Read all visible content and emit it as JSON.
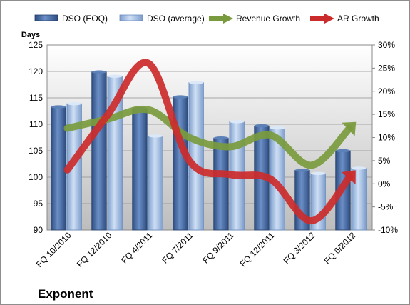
{
  "chart_data": {
    "type": "bar",
    "title": "Exponent",
    "ylabel": "Days",
    "y2label": "",
    "ylim": [
      90,
      125
    ],
    "y2lim": [
      -10,
      30
    ],
    "yticks": [
      "125",
      "120",
      "115",
      "110",
      "105",
      "100",
      "95",
      "90"
    ],
    "y2ticks": [
      "30%",
      "25%",
      "20%",
      "15%",
      "10%",
      "5%",
      "0%",
      "-5%",
      "-10%"
    ],
    "categories": [
      "FQ 10/2010",
      "FQ 12/2010",
      "FQ 4/2011",
      "FQ 7/2011",
      "FQ 9/2011",
      "FQ 12/2011",
      "FQ 3/2012",
      "FQ 6/2012"
    ],
    "series": [
      {
        "name": "DSO (EOQ)",
        "kind": "bar",
        "axis": "left",
        "color": "#4a6fa5",
        "values": [
          113.3,
          119.9,
          113.0,
          115.2,
          107.4,
          109.7,
          101.3,
          105.0
        ]
      },
      {
        "name": "DSO (average)",
        "kind": "bar",
        "axis": "left",
        "color": "#a9c4e8",
        "values": [
          113.9,
          119.1,
          107.8,
          117.9,
          110.5,
          109.3,
          100.7,
          101.7
        ]
      },
      {
        "name": "Revenue Growth",
        "kind": "line-arrow",
        "axis": "right",
        "color": "#7a9b3d",
        "values": [
          12.0,
          14.0,
          16.0,
          10.0,
          8.0,
          10.5,
          4.0,
          12.5
        ]
      },
      {
        "name": "AR Growth",
        "kind": "line-arrow",
        "axis": "right",
        "color": "#cc2b2b",
        "values": [
          3.0,
          15.0,
          26.0,
          5.0,
          2.0,
          1.0,
          -8.0,
          2.0
        ]
      }
    ],
    "grid": true,
    "legend": "top"
  }
}
